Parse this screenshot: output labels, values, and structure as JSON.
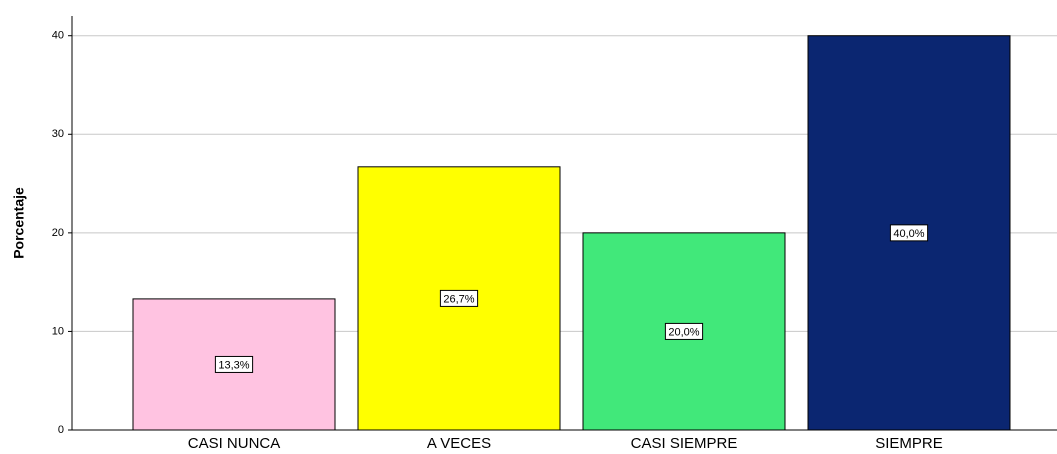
{
  "chart_data": {
    "type": "bar",
    "y_label": "Porcentaje",
    "categories": [
      "CASI NUNCA",
      "A VECES",
      "CASI SIEMPRE",
      "SIEMPRE"
    ],
    "values": [
      13.3,
      26.7,
      20.0,
      40.0
    ],
    "value_labels": [
      "13,3%",
      "26,7%",
      "20,0%",
      "40,0%"
    ],
    "colors": [
      "#ffc3e1",
      "#ffff00",
      "#41e87a",
      "#0b2671"
    ],
    "ylim": [
      0,
      42
    ],
    "yticks": [
      0,
      10,
      20,
      30,
      40
    ],
    "grid": true
  }
}
